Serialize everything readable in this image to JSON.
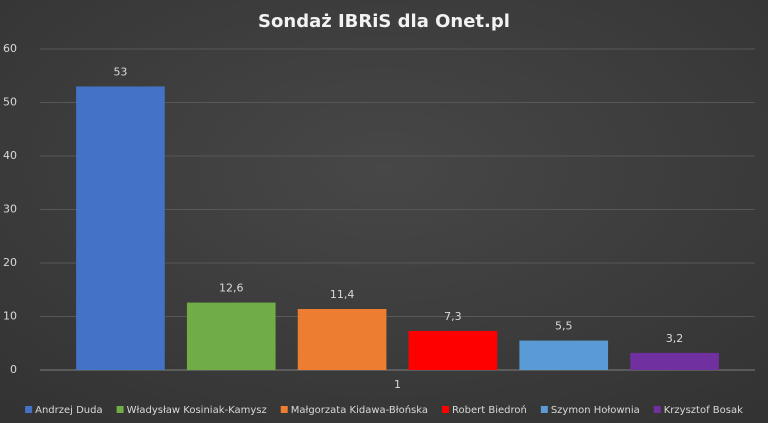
{
  "chart_data": {
    "type": "bar",
    "title": "Sondaż IBRiS dla Onet.pl",
    "categories": [
      "1"
    ],
    "series": [
      {
        "name": "Andrzej Duda",
        "color": "#4472c4",
        "values": [
          53
        ]
      },
      {
        "name": "Władysław Kosiniak-Kamysz",
        "color": "#70ad47",
        "values": [
          12.6
        ],
        "value_labels": [
          "12,6"
        ]
      },
      {
        "name": "Małgorzata Kidawa-Błońska",
        "color": "#ed7d31",
        "values": [
          11.4
        ],
        "value_labels": [
          "11,4"
        ]
      },
      {
        "name": "Robert Biedroń",
        "color": "#ff0000",
        "values": [
          7.3
        ],
        "value_labels": [
          "7,3"
        ]
      },
      {
        "name": "Szymon Hołownia",
        "color": "#5b9bd5",
        "values": [
          5.5
        ],
        "value_labels": [
          "5,5"
        ]
      },
      {
        "name": "Krzysztof Bosak",
        "color": "#7030a0",
        "values": [
          3.2
        ],
        "value_labels": [
          "3,2"
        ]
      }
    ],
    "ylim": [
      0,
      60
    ],
    "yticks": [
      0,
      10,
      20,
      30,
      40,
      50,
      60
    ],
    "grid": true,
    "legend": "bottom"
  }
}
